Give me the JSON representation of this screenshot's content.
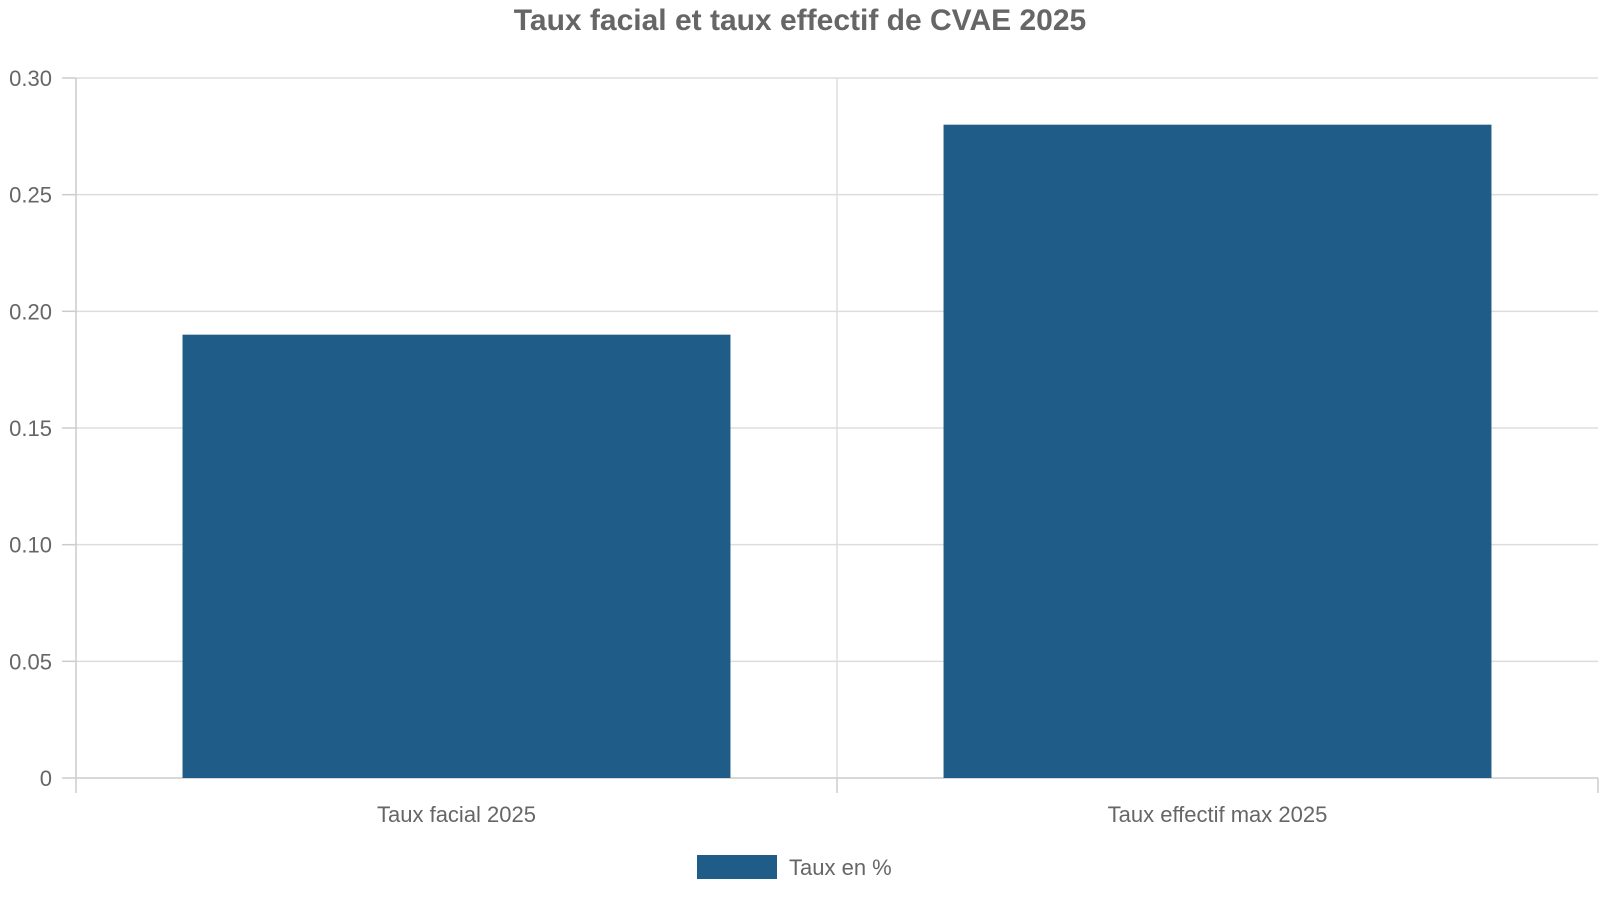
{
  "chart_data": {
    "type": "bar",
    "title": "Taux facial et taux effectif de CVAE 2025",
    "xlabel": "",
    "ylabel": "",
    "categories": [
      "Taux facial 2025",
      "Taux effectif max 2025"
    ],
    "series": [
      {
        "name": "Taux en %",
        "values": [
          0.19,
          0.28
        ],
        "color": "#1f5c87"
      }
    ],
    "ylim": [
      0,
      0.3
    ],
    "yticks": [
      0,
      0.05,
      0.1,
      0.15,
      0.2,
      0.25,
      0.3
    ],
    "ytick_labels": [
      "0",
      "0.05",
      "0.10",
      "0.15",
      "0.20",
      "0.25",
      "0.30"
    ],
    "grid": true,
    "legend_position": "bottom-center"
  }
}
